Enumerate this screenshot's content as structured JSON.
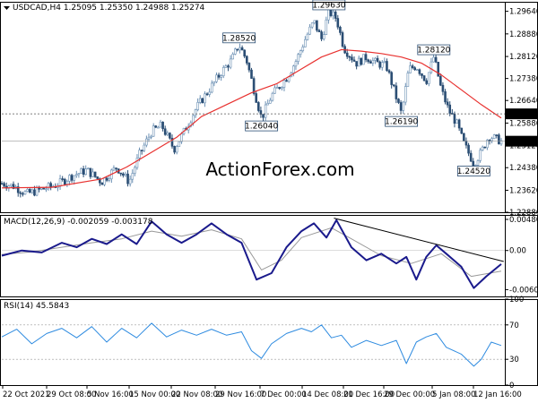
{
  "chart_data": [
    {
      "type": "candlestick",
      "header": "USDCAD,H4  1.25095 1.25350 1.24988 1.25274",
      "watermark": "ActionForex.com",
      "y_ticks": [
        "1.29640",
        "1.28880",
        "1.28120",
        "1.27380",
        "1.26640",
        "1.25880",
        "1.25120",
        "1.24380",
        "1.23620",
        "1.22880"
      ],
      "y_range": [
        1.2288,
        1.2996
      ],
      "horizontal_levels": [
        {
          "value": 1.2619,
          "label": "1.26190"
        }
      ],
      "last_price_label": "1.25274",
      "annotations": [
        "1.29630",
        "1.28520",
        "1.28120",
        "1.26040",
        "1.26190",
        "1.24520"
      ],
      "price_path": [
        {
          "x": 0.0,
          "y": 1.2385
        },
        {
          "x": 2.5,
          "y": 1.2375
        },
        {
          "x": 5.0,
          "y": 1.235
        },
        {
          "x": 8.0,
          "y": 1.2365
        },
        {
          "x": 11.0,
          "y": 1.238
        },
        {
          "x": 14.0,
          "y": 1.241
        },
        {
          "x": 17.0,
          "y": 1.243
        },
        {
          "x": 20.0,
          "y": 1.239
        },
        {
          "x": 23.0,
          "y": 1.244
        },
        {
          "x": 25.5,
          "y": 1.239
        },
        {
          "x": 27.5,
          "y": 1.248
        },
        {
          "x": 30.0,
          "y": 1.256
        },
        {
          "x": 32.0,
          "y": 1.258
        },
        {
          "x": 34.5,
          "y": 1.25
        },
        {
          "x": 36.5,
          "y": 1.256
        },
        {
          "x": 39.0,
          "y": 1.264
        },
        {
          "x": 41.5,
          "y": 1.27
        },
        {
          "x": 44.0,
          "y": 1.276
        },
        {
          "x": 46.0,
          "y": 1.28
        },
        {
          "x": 47.5,
          "y": 1.2852
        },
        {
          "x": 49.0,
          "y": 1.28
        },
        {
          "x": 50.5,
          "y": 1.27
        },
        {
          "x": 52.0,
          "y": 1.2604
        },
        {
          "x": 54.0,
          "y": 1.268
        },
        {
          "x": 57.0,
          "y": 1.274
        },
        {
          "x": 59.0,
          "y": 1.28
        },
        {
          "x": 61.0,
          "y": 1.288
        },
        {
          "x": 62.5,
          "y": 1.293
        },
        {
          "x": 64.0,
          "y": 1.287
        },
        {
          "x": 65.5,
          "y": 1.2963
        },
        {
          "x": 67.0,
          "y": 1.294
        },
        {
          "x": 68.5,
          "y": 1.284
        },
        {
          "x": 71.0,
          "y": 1.279
        },
        {
          "x": 73.0,
          "y": 1.281
        },
        {
          "x": 75.0,
          "y": 1.279
        },
        {
          "x": 77.0,
          "y": 1.278
        },
        {
          "x": 78.5,
          "y": 1.27
        },
        {
          "x": 80.0,
          "y": 1.2619
        },
        {
          "x": 81.5,
          "y": 1.277
        },
        {
          "x": 83.0,
          "y": 1.278
        },
        {
          "x": 85.0,
          "y": 1.273
        },
        {
          "x": 86.5,
          "y": 1.2812
        },
        {
          "x": 88.0,
          "y": 1.27
        },
        {
          "x": 89.5,
          "y": 1.263
        },
        {
          "x": 91.0,
          "y": 1.259
        },
        {
          "x": 92.5,
          "y": 1.252
        },
        {
          "x": 94.5,
          "y": 1.2452
        },
        {
          "x": 96.0,
          "y": 1.249
        },
        {
          "x": 97.5,
          "y": 1.2545
        },
        {
          "x": 100.0,
          "y": 1.2527
        }
      ],
      "ma_path": [
        {
          "x": 0.0,
          "y": 1.237
        },
        {
          "x": 10.0,
          "y": 1.2372
        },
        {
          "x": 20.0,
          "y": 1.24
        },
        {
          "x": 25.0,
          "y": 1.244
        },
        {
          "x": 30.0,
          "y": 1.249
        },
        {
          "x": 35.0,
          "y": 1.254
        },
        {
          "x": 40.0,
          "y": 1.261
        },
        {
          "x": 45.0,
          "y": 1.265
        },
        {
          "x": 50.0,
          "y": 1.269
        },
        {
          "x": 55.0,
          "y": 1.272
        },
        {
          "x": 60.0,
          "y": 1.277
        },
        {
          "x": 64.0,
          "y": 1.281
        },
        {
          "x": 68.0,
          "y": 1.2835
        },
        {
          "x": 72.0,
          "y": 1.283
        },
        {
          "x": 76.0,
          "y": 1.2822
        },
        {
          "x": 80.0,
          "y": 1.281
        },
        {
          "x": 84.0,
          "y": 1.279
        },
        {
          "x": 88.0,
          "y": 1.275
        },
        {
          "x": 92.0,
          "y": 1.27
        },
        {
          "x": 96.0,
          "y": 1.265
        },
        {
          "x": 100.0,
          "y": 1.2605
        }
      ]
    },
    {
      "type": "line",
      "header": "MACD(12,26,9) -0.002059 -0.003178",
      "y_ticks": [
        "0.004809",
        "0.00",
        "-0.00605"
      ],
      "y_range": [
        -0.0071,
        0.0055
      ],
      "macd_path": [
        {
          "x": 0,
          "y": -0.0008
        },
        {
          "x": 4,
          "y": 0.0
        },
        {
          "x": 8,
          "y": -0.0003
        },
        {
          "x": 12,
          "y": 0.0012
        },
        {
          "x": 15,
          "y": 0.0005
        },
        {
          "x": 18,
          "y": 0.0018
        },
        {
          "x": 21,
          "y": 0.001
        },
        {
          "x": 24,
          "y": 0.0025
        },
        {
          "x": 27,
          "y": 0.001
        },
        {
          "x": 30,
          "y": 0.0045
        },
        {
          "x": 33,
          "y": 0.0025
        },
        {
          "x": 36,
          "y": 0.0012
        },
        {
          "x": 39,
          "y": 0.0025
        },
        {
          "x": 42,
          "y": 0.0042
        },
        {
          "x": 45,
          "y": 0.0025
        },
        {
          "x": 48,
          "y": 0.0012
        },
        {
          "x": 51,
          "y": -0.0045
        },
        {
          "x": 54,
          "y": -0.0035
        },
        {
          "x": 57,
          "y": 0.0005
        },
        {
          "x": 60,
          "y": 0.003
        },
        {
          "x": 62.5,
          "y": 0.0042
        },
        {
          "x": 65,
          "y": 0.002
        },
        {
          "x": 67,
          "y": 0.0047
        },
        {
          "x": 70,
          "y": 0.0005
        },
        {
          "x": 73,
          "y": -0.0015
        },
        {
          "x": 76,
          "y": -0.0005
        },
        {
          "x": 79,
          "y": -0.002
        },
        {
          "x": 81,
          "y": -0.001
        },
        {
          "x": 83,
          "y": -0.0045
        },
        {
          "x": 85,
          "y": -0.001
        },
        {
          "x": 87,
          "y": 0.0008
        },
        {
          "x": 89,
          "y": -0.0005
        },
        {
          "x": 92,
          "y": -0.0025
        },
        {
          "x": 94.5,
          "y": -0.0058
        },
        {
          "x": 97,
          "y": -0.004
        },
        {
          "x": 100,
          "y": -0.0021
        }
      ],
      "signal_path": [
        {
          "x": 0,
          "y": -0.0006
        },
        {
          "x": 6,
          "y": -0.0002
        },
        {
          "x": 12,
          "y": 0.0005
        },
        {
          "x": 18,
          "y": 0.0012
        },
        {
          "x": 24,
          "y": 0.0018
        },
        {
          "x": 30,
          "y": 0.003
        },
        {
          "x": 36,
          "y": 0.0022
        },
        {
          "x": 42,
          "y": 0.0032
        },
        {
          "x": 48,
          "y": 0.0018
        },
        {
          "x": 52,
          "y": -0.003
        },
        {
          "x": 56,
          "y": -0.0015
        },
        {
          "x": 60,
          "y": 0.002
        },
        {
          "x": 66,
          "y": 0.0035
        },
        {
          "x": 70,
          "y": 0.0018
        },
        {
          "x": 76,
          "y": -0.0008
        },
        {
          "x": 82,
          "y": -0.002
        },
        {
          "x": 88,
          "y": -0.0005
        },
        {
          "x": 94,
          "y": -0.004
        },
        {
          "x": 100,
          "y": -0.0032
        }
      ],
      "trendline": [
        {
          "x": 66.5,
          "y": 0.005
        },
        {
          "x": 100.5,
          "y": -0.0017
        }
      ]
    },
    {
      "type": "line",
      "header": "RSI(14) 45.5843",
      "y_ticks": [
        "100",
        "70",
        "30",
        "0"
      ],
      "y_range": [
        0,
        100
      ],
      "rsi_path": [
        {
          "x": 0,
          "y": 56
        },
        {
          "x": 3,
          "y": 65
        },
        {
          "x": 6,
          "y": 48
        },
        {
          "x": 9,
          "y": 60
        },
        {
          "x": 12,
          "y": 66
        },
        {
          "x": 15,
          "y": 55
        },
        {
          "x": 18,
          "y": 68
        },
        {
          "x": 21,
          "y": 50
        },
        {
          "x": 24,
          "y": 66
        },
        {
          "x": 27,
          "y": 55
        },
        {
          "x": 30,
          "y": 72
        },
        {
          "x": 33,
          "y": 56
        },
        {
          "x": 36,
          "y": 64
        },
        {
          "x": 39,
          "y": 58
        },
        {
          "x": 42,
          "y": 65
        },
        {
          "x": 45,
          "y": 58
        },
        {
          "x": 48,
          "y": 62
        },
        {
          "x": 50,
          "y": 40
        },
        {
          "x": 52,
          "y": 31
        },
        {
          "x": 54,
          "y": 48
        },
        {
          "x": 57,
          "y": 60
        },
        {
          "x": 60,
          "y": 66
        },
        {
          "x": 62,
          "y": 62
        },
        {
          "x": 64,
          "y": 70
        },
        {
          "x": 66,
          "y": 55
        },
        {
          "x": 68,
          "y": 58
        },
        {
          "x": 70,
          "y": 44
        },
        {
          "x": 73,
          "y": 52
        },
        {
          "x": 76,
          "y": 46
        },
        {
          "x": 79,
          "y": 52
        },
        {
          "x": 81,
          "y": 25
        },
        {
          "x": 83,
          "y": 50
        },
        {
          "x": 85,
          "y": 56
        },
        {
          "x": 87,
          "y": 60
        },
        {
          "x": 89,
          "y": 44
        },
        {
          "x": 92,
          "y": 36
        },
        {
          "x": 94.5,
          "y": 22
        },
        {
          "x": 96,
          "y": 30
        },
        {
          "x": 98,
          "y": 50
        },
        {
          "x": 100,
          "y": 46
        }
      ]
    }
  ],
  "x_axis_labels": [
    "22 Oct 2021",
    "29 Oct 08:00",
    "5 Nov 16:00",
    "15 Nov 00:00",
    "22 Nov 08:00",
    "29 Nov 16:00",
    "7 Dec 00:00",
    "14 Dec 08:00",
    "21 Dec 16:00",
    "29 Dec 00:00",
    "5 Jan 08:00",
    "12 Jan 16:00"
  ],
  "colors": {
    "candle_up": "#6a8fb3",
    "candle_down": "#2a4d73",
    "ma": "#e8312f",
    "macd": "#1a1a8c",
    "macd_signal": "#999999",
    "rsi": "#2e8be0",
    "trendline": "#000000",
    "dashed_level": "#555555",
    "price_tag_bg": "#000000",
    "price_tag_fg": "#ffffff",
    "watermark": "#c8c8c8"
  }
}
